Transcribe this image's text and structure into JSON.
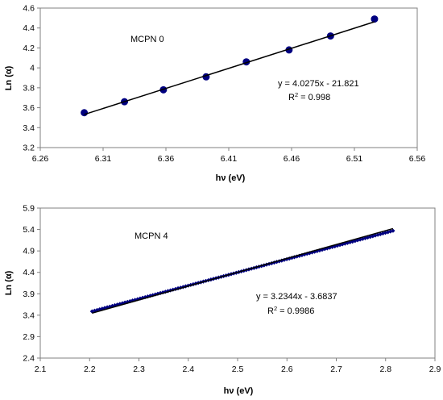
{
  "chart_data": [
    {
      "type": "scatter",
      "annotation": "MCPN 0",
      "xlabel": "hν (eV)",
      "ylabel": "Ln (α)",
      "xlim": [
        6.26,
        6.56
      ],
      "ylim": [
        3.2,
        4.6
      ],
      "x_ticks": [
        "6.26",
        "6.31",
        "6.36",
        "6.41",
        "6.46",
        "6.51",
        "6.56"
      ],
      "y_ticks": [
        "3.2",
        "3.4",
        "3.6",
        "3.8",
        "4",
        "4.2",
        "4.4",
        "4.6"
      ],
      "grid": false,
      "marker_color": "#000080",
      "line_color": "#000000",
      "points": {
        "x": [
          6.295,
          6.327,
          6.358,
          6.392,
          6.424,
          6.458,
          6.491,
          6.526
        ],
        "y": [
          3.55,
          3.66,
          3.78,
          3.91,
          4.06,
          4.18,
          4.32,
          4.49
        ]
      },
      "trendline": {
        "slope": 4.0275,
        "intercept": -21.821,
        "x_range": [
          6.295,
          6.526
        ]
      },
      "equation_text": "y = 4.0275x - 21.821",
      "r2_label": "R",
      "r2_sup": "2",
      "r2_value": " = 0.998"
    },
    {
      "type": "scatter",
      "annotation": "MCPN 4",
      "xlabel": "hν (eV)",
      "ylabel": "Ln (α)",
      "xlim": [
        2.1,
        2.9
      ],
      "ylim": [
        2.4,
        5.9
      ],
      "x_ticks": [
        "2.1",
        "2.2",
        "2.3",
        "2.4",
        "2.5",
        "2.6",
        "2.7",
        "2.8",
        "2.9"
      ],
      "y_ticks": [
        "2.4",
        "2.9",
        "3.4",
        "3.9",
        "4.4",
        "4.9",
        "5.4",
        "5.9"
      ],
      "grid": false,
      "marker_color": "#000080",
      "line_color": "#000000",
      "dense_series": {
        "x_start": 2.205,
        "x_end": 2.815,
        "count": 120,
        "y_start": 3.49,
        "y_end": 5.37
      },
      "trendline": {
        "slope": 3.2344,
        "intercept": -3.6837,
        "x_range": [
          2.205,
          2.815
        ]
      },
      "equation_text": "y = 3.2344x - 3.6837",
      "r2_label": "R",
      "r2_sup": "2",
      "r2_value": " = 0.9986"
    }
  ]
}
